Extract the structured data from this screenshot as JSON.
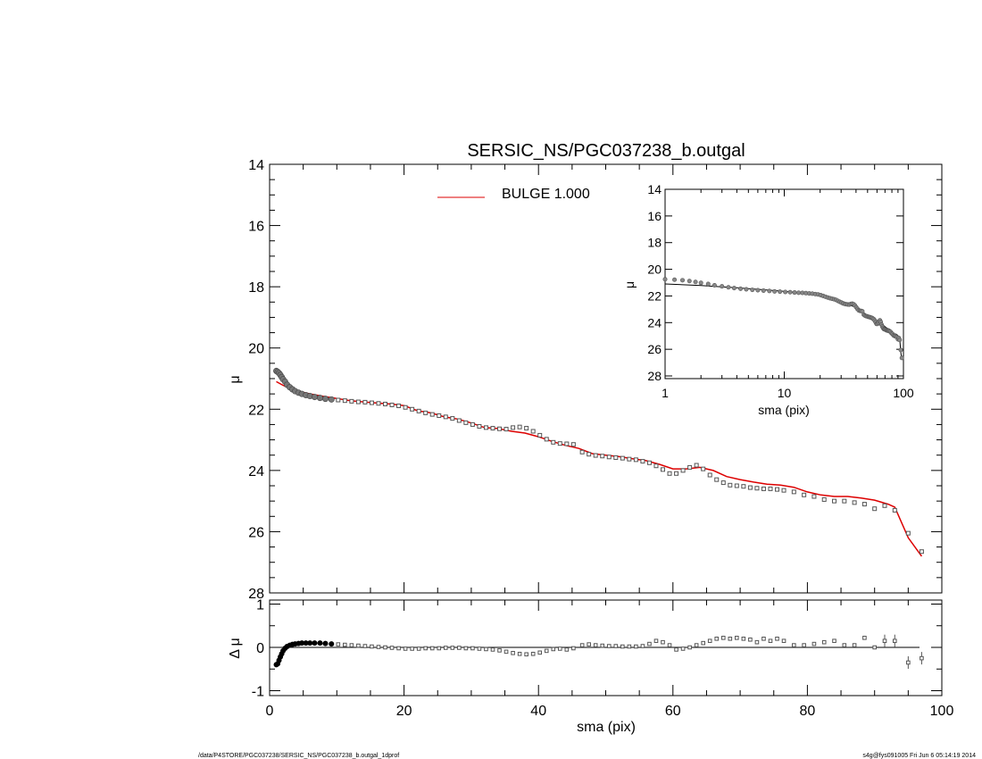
{
  "footer": {
    "left": "/data/P4STORE/PGC037238/SERSIC_NS/PGC037238_b.outgal_1dprof",
    "right": "s4g@fys091005  Fri Jun  6 05:14:19 2014"
  },
  "colors": {
    "model": "#dd0000",
    "data": "#555555",
    "axis": "#000000"
  },
  "chart_data": [
    {
      "type": "scatter",
      "panel": "main",
      "title": "SERSIC_NS/PGC037238_b.outgal",
      "xlabel": "",
      "ylabel": "μ",
      "xlim": [
        0,
        100
      ],
      "ylim": [
        28,
        14
      ],
      "yticks": [
        14,
        16,
        18,
        20,
        22,
        24,
        26,
        28
      ],
      "legend": {
        "label": "BULGE  1.000",
        "placement": "top-center"
      },
      "series": [
        {
          "kind": "points",
          "x": [
            1.0,
            1.2,
            1.4,
            1.6,
            1.8,
            2.0,
            2.3,
            2.6,
            3.0,
            3.4,
            3.8,
            4.3,
            4.8,
            5.4,
            6.0,
            6.7,
            7.5,
            8.3,
            9.2,
            10.2,
            11.2,
            12.2,
            13.2,
            14.2,
            15.2,
            16.2,
            17.2,
            18.2,
            19.2,
            20.2,
            21.2,
            22.2,
            23.2,
            24.2,
            25.2,
            26.2,
            27.2,
            28.2,
            29.2,
            30.2,
            31.2,
            32.2,
            33.2,
            34.2,
            35.2,
            36.2,
            37.2,
            38.2,
            39.2,
            40.2,
            41.2,
            42.2,
            43.2,
            44.2,
            45.2,
            46.5,
            47.5,
            48.5,
            49.5,
            50.5,
            51.5,
            52.5,
            53.5,
            54.5,
            55.5,
            56.5,
            57.5,
            58.5,
            59.5,
            60.5,
            61.5,
            62.5,
            63.5,
            64.5,
            65.5,
            66.5,
            67.5,
            68.5,
            69.5,
            70.5,
            71.5,
            72.5,
            73.5,
            74.5,
            75.5,
            76.5,
            78,
            79.5,
            81,
            82.5,
            84,
            85.5,
            87,
            88.5,
            90,
            91.5,
            93,
            95,
            97
          ],
          "y": [
            20.75,
            20.78,
            20.82,
            20.88,
            20.95,
            21.02,
            21.1,
            21.2,
            21.28,
            21.35,
            21.41,
            21.46,
            21.5,
            21.54,
            21.57,
            21.6,
            21.63,
            21.66,
            21.68,
            21.7,
            21.72,
            21.74,
            21.76,
            21.77,
            21.79,
            21.81,
            21.83,
            21.86,
            21.89,
            21.94,
            22.0,
            22.06,
            22.12,
            22.17,
            22.21,
            22.25,
            22.3,
            22.37,
            22.44,
            22.5,
            22.56,
            22.6,
            22.62,
            22.64,
            22.65,
            22.6,
            22.58,
            22.62,
            22.72,
            22.85,
            22.98,
            23.08,
            23.12,
            23.13,
            23.15,
            23.4,
            23.47,
            23.51,
            23.53,
            23.56,
            23.58,
            23.6,
            23.63,
            23.65,
            23.7,
            23.75,
            23.85,
            23.97,
            24.1,
            24.1,
            24.0,
            23.9,
            23.83,
            23.95,
            24.15,
            24.3,
            24.4,
            24.48,
            24.5,
            24.52,
            24.56,
            24.58,
            24.6,
            24.6,
            24.62,
            24.65,
            24.7,
            24.8,
            24.85,
            24.95,
            25.0,
            25.0,
            25.05,
            25.1,
            25.25,
            25.15,
            25.3,
            26.05,
            26.65
          ]
        },
        {
          "kind": "line",
          "name": "BULGE  1.000",
          "x": [
            1.0,
            2.0,
            3.0,
            4.0,
            5.0,
            6.0,
            8.0,
            10.0,
            12.0,
            14.0,
            16.0,
            18.0,
            20.0,
            22.0,
            24.0,
            26.0,
            28.0,
            30.0,
            32.0,
            34.0,
            36.0,
            38.0,
            40.0,
            42.0,
            44.0,
            46.0,
            48.0,
            50.0,
            52.0,
            54.0,
            56.0,
            58.0,
            60.0,
            62.0,
            64.0,
            66.0,
            68.0,
            70.0,
            72.0,
            74.0,
            76.0,
            78.0,
            80.0,
            82.0,
            84.0,
            86.0,
            88.0,
            90.0,
            92.0,
            93.0,
            95.0,
            97.0
          ],
          "y": [
            21.1,
            21.22,
            21.32,
            21.39,
            21.45,
            21.5,
            21.58,
            21.65,
            21.72,
            21.76,
            21.8,
            21.83,
            21.88,
            22.05,
            22.12,
            22.25,
            22.32,
            22.45,
            22.6,
            22.63,
            22.72,
            22.78,
            22.9,
            23.05,
            23.18,
            23.28,
            23.45,
            23.5,
            23.55,
            23.62,
            23.68,
            23.8,
            23.95,
            23.95,
            23.9,
            24.0,
            24.2,
            24.3,
            24.38,
            24.45,
            24.48,
            24.55,
            24.7,
            24.8,
            24.85,
            24.85,
            24.9,
            24.97,
            25.1,
            25.2,
            26.2,
            26.8
          ]
        }
      ]
    },
    {
      "type": "scatter",
      "panel": "residual",
      "xlabel": "sma (pix)",
      "ylabel": "Δ μ",
      "xlim": [
        0,
        100
      ],
      "ylim": [
        -1.1,
        1.1
      ],
      "xticks": [
        0,
        20,
        40,
        60,
        80,
        100
      ],
      "yticks": [
        -1,
        0,
        1
      ],
      "series": [
        {
          "kind": "points",
          "x": [
            1.0,
            1.2,
            1.4,
            1.6,
            1.8,
            2.0,
            2.3,
            2.6,
            3.0,
            3.4,
            3.8,
            4.3,
            4.8,
            5.4,
            6.0,
            6.7,
            7.5,
            8.3,
            9.2,
            10.2,
            11.2,
            12.2,
            13.2,
            14.2,
            15.2,
            16.2,
            17.2,
            18.2,
            19.2,
            20.2,
            21.2,
            22.2,
            23.2,
            24.2,
            25.2,
            26.2,
            27.2,
            28.2,
            29.2,
            30.2,
            31.2,
            32.2,
            33.2,
            34.2,
            35.2,
            36.2,
            37.2,
            38.2,
            39.2,
            40.2,
            41.2,
            42.2,
            43.2,
            44.2,
            45.2,
            46.5,
            47.5,
            48.5,
            49.5,
            50.5,
            51.5,
            52.5,
            53.5,
            54.5,
            55.5,
            56.5,
            57.5,
            58.5,
            59.5,
            60.5,
            61.5,
            62.5,
            63.5,
            64.5,
            65.5,
            66.5,
            67.5,
            68.5,
            69.5,
            70.5,
            71.5,
            72.5,
            73.5,
            74.5,
            75.5,
            76.5,
            78,
            79.5,
            81,
            82.5,
            84,
            85.5,
            87,
            88.5,
            90,
            91.5,
            93,
            95,
            97
          ],
          "y": [
            -0.4,
            -0.38,
            -0.3,
            -0.22,
            -0.15,
            -0.08,
            -0.02,
            0.02,
            0.05,
            0.07,
            0.08,
            0.09,
            0.1,
            0.1,
            0.1,
            0.1,
            0.1,
            0.09,
            0.08,
            0.07,
            0.06,
            0.05,
            0.04,
            0.03,
            0.02,
            0.01,
            0.0,
            -0.01,
            -0.02,
            -0.03,
            -0.03,
            -0.03,
            -0.02,
            -0.02,
            -0.02,
            -0.01,
            -0.01,
            -0.01,
            -0.02,
            -0.02,
            -0.03,
            -0.04,
            -0.05,
            -0.07,
            -0.1,
            -0.13,
            -0.15,
            -0.16,
            -0.15,
            -0.12,
            -0.08,
            -0.04,
            -0.03,
            -0.05,
            -0.02,
            0.05,
            0.07,
            0.05,
            0.04,
            0.03,
            0.03,
            0.02,
            0.02,
            0.02,
            0.03,
            0.08,
            0.15,
            0.12,
            0.05,
            -0.05,
            -0.03,
            0.0,
            0.05,
            0.1,
            0.15,
            0.2,
            0.22,
            0.2,
            0.22,
            0.2,
            0.18,
            0.12,
            0.2,
            0.15,
            0.2,
            0.15,
            0.05,
            0.05,
            0.08,
            0.12,
            0.15,
            0.05,
            0.05,
            0.22,
            0.0,
            0.15,
            0.15,
            -0.35,
            -0.25
          ]
        }
      ]
    },
    {
      "type": "scatter",
      "panel": "inset",
      "xlabel": "sma (pix)",
      "ylabel": "μ",
      "xscale": "log",
      "xlim": [
        1,
        100
      ],
      "ylim": [
        28.2,
        14
      ],
      "xticks": [
        1,
        10,
        100
      ],
      "yticks": [
        14,
        16,
        18,
        20,
        22,
        24,
        26,
        28
      ]
    }
  ]
}
